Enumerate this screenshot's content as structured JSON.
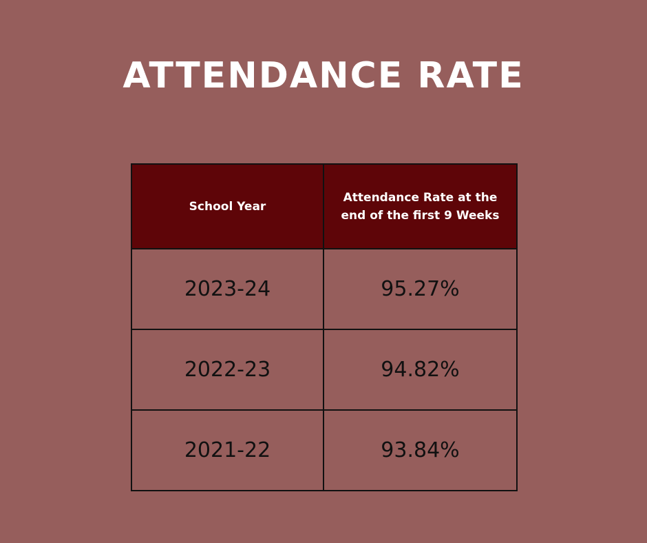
{
  "title": "ATTENDANCE RATE",
  "colors": {
    "background": "#965e5c",
    "header_background": "#5e0508",
    "header_text": "#ffffff",
    "cell_text": "#111111",
    "border": "#111111"
  },
  "chart_data": {
    "type": "table",
    "title": "ATTENDANCE RATE",
    "columns": [
      "School Year",
      "Attendance Rate at the end of the first 9 Weeks"
    ],
    "rows": [
      {
        "year": "2023-24",
        "rate": "95.27%"
      },
      {
        "year": "2022-23",
        "rate": "94.82%"
      },
      {
        "year": "2021-22",
        "rate": "93.84%"
      }
    ]
  }
}
